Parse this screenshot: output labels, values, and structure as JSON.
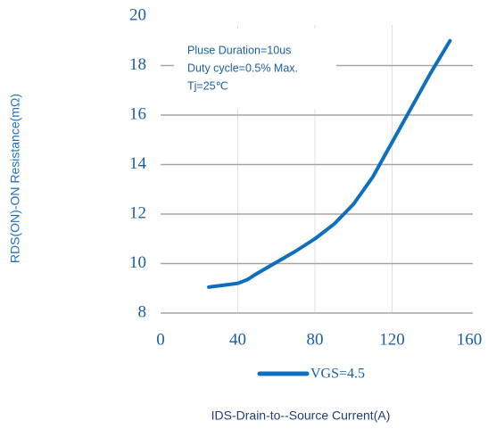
{
  "chart_data": {
    "type": "line",
    "xlabel": "IDS-Drain-to--Source Current(A)",
    "ylabel": "RDS(ON)-ON Resistance(mΩ)",
    "annotations": [
      "Pluse Duration=10us",
      "Duty cycle=0.5% Max.",
      "Tj=25℃"
    ],
    "x": [
      25,
      30,
      40,
      45,
      50,
      60,
      70,
      80,
      90,
      100,
      110,
      120,
      130,
      140,
      150
    ],
    "series": [
      {
        "name": "VGS=4.5",
        "color": "#0e6fbe",
        "values": [
          9.05,
          9.1,
          9.2,
          9.35,
          9.6,
          10.05,
          10.5,
          11,
          11.6,
          12.4,
          13.5,
          14.9,
          16.3,
          17.7,
          19
        ]
      }
    ],
    "xlim": [
      0,
      160
    ],
    "xticks": [
      0,
      40,
      80,
      120,
      160
    ],
    "ylim": [
      8,
      20
    ],
    "yticks": [
      8,
      10,
      12,
      14,
      16,
      18,
      20
    ],
    "grid": true
  }
}
